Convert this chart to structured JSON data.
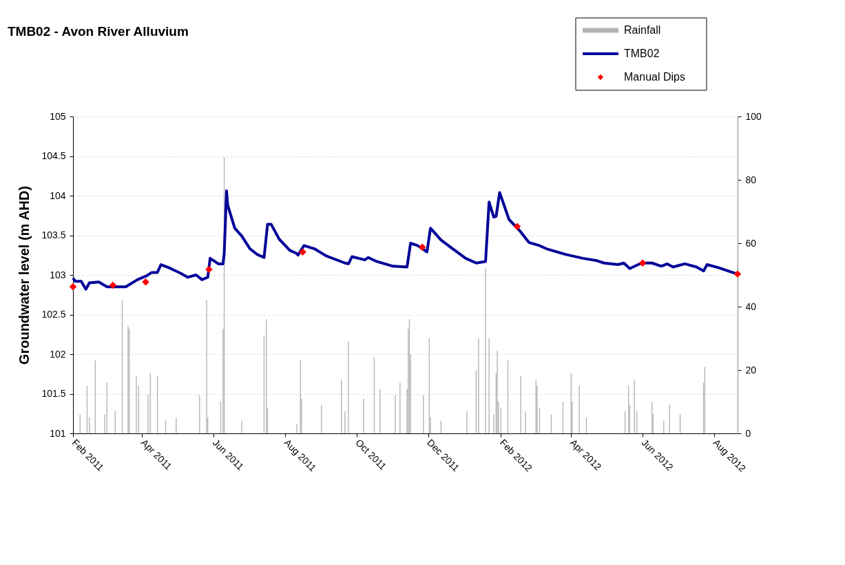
{
  "chart_data": {
    "type": "line",
    "title": "TMB02 - Avon River Alluvium",
    "ylabel": "Groundwater level (m AHD)",
    "xlim": [
      "2011-02-01",
      "2012-08-21"
    ],
    "xticks": [
      {
        "value": "2011-02-01",
        "label": "Feb 2011"
      },
      {
        "value": "2011-04-01",
        "label": "Apr 2011"
      },
      {
        "value": "2011-06-01",
        "label": "Jun 2011"
      },
      {
        "value": "2011-08-01",
        "label": "Aug 2011"
      },
      {
        "value": "2011-10-01",
        "label": "Oct 2011"
      },
      {
        "value": "2011-12-01",
        "label": "Dec 2011"
      },
      {
        "value": "2012-02-01",
        "label": "Feb 2012"
      },
      {
        "value": "2012-04-01",
        "label": "Apr 2012"
      },
      {
        "value": "2012-06-01",
        "label": "Jun 2012"
      },
      {
        "value": "2012-08-01",
        "label": "Aug 2012"
      }
    ],
    "ylim": [
      101,
      105
    ],
    "yticks": [
      101,
      101.5,
      102,
      102.5,
      103,
      103.5,
      104,
      104.5,
      105
    ],
    "y2lim": [
      0,
      100
    ],
    "y2ticks": [
      0,
      20,
      40,
      60,
      80,
      100
    ],
    "grid": "y",
    "legend": "top right",
    "series": [
      {
        "name": "Rainfall",
        "type": "bar",
        "axis": "y2",
        "color": "#b4b4b4",
        "x": [
          "2011-02-07",
          "2011-02-13",
          "2011-02-15",
          "2011-02-20",
          "2011-02-28",
          "2011-03-02",
          "2011-03-09",
          "2011-03-15",
          "2011-03-20",
          "2011-03-21",
          "2011-03-27",
          "2011-03-29",
          "2011-04-06",
          "2011-04-08",
          "2011-04-14",
          "2011-04-21",
          "2011-04-30",
          "2011-05-20",
          "2011-05-26",
          "2011-05-27",
          "2011-06-07",
          "2011-06-09",
          "2011-06-10",
          "2011-06-25",
          "2011-07-14",
          "2011-07-16",
          "2011-07-17",
          "2011-08-11",
          "2011-08-14",
          "2011-08-15",
          "2011-09-01",
          "2011-09-18",
          "2011-09-21",
          "2011-09-24",
          "2011-10-07",
          "2011-10-16",
          "2011-10-21",
          "2011-11-03",
          "2011-11-07",
          "2011-11-13",
          "2011-11-14",
          "2011-11-15",
          "2011-11-16",
          "2011-11-27",
          "2011-12-02",
          "2011-12-03",
          "2011-12-12",
          "2012-01-03",
          "2012-01-11",
          "2012-01-13",
          "2012-01-19",
          "2012-01-22",
          "2012-01-26",
          "2012-01-28",
          "2012-01-29",
          "2012-01-30",
          "2012-02-01",
          "2012-02-07",
          "2012-02-18",
          "2012-02-22",
          "2012-03-02",
          "2012-03-03",
          "2012-03-05",
          "2012-03-15",
          "2012-03-25",
          "2012-04-01",
          "2012-04-02",
          "2012-04-08",
          "2012-04-14",
          "2012-05-17",
          "2012-05-20",
          "2012-05-21",
          "2012-05-25",
          "2012-05-27",
          "2012-06-09",
          "2012-06-10",
          "2012-06-19",
          "2012-06-24",
          "2012-07-03",
          "2012-07-23",
          "2012-07-24"
        ],
        "values": [
          6,
          15,
          5,
          23,
          6,
          16,
          7,
          42,
          34,
          33,
          18,
          15,
          12,
          19,
          18,
          4,
          5,
          12,
          42,
          5,
          10,
          33,
          87,
          4,
          31,
          36,
          8,
          3,
          23,
          11,
          9,
          17,
          7,
          29,
          11,
          24,
          14,
          12,
          16,
          14,
          33,
          36,
          25,
          12,
          30,
          5,
          4,
          7,
          20,
          30,
          52,
          30,
          6,
          19,
          26,
          10,
          8,
          23,
          18,
          7,
          17,
          15,
          8,
          6,
          10,
          19,
          10,
          15,
          5,
          7,
          15,
          9,
          17,
          7,
          10,
          6,
          4,
          9,
          6,
          16,
          21
        ]
      },
      {
        "name": "TMB02",
        "color": "#000099",
        "x": [
          "2011-02-01",
          "2011-02-03",
          "2011-02-08",
          "2011-02-12",
          "2011-02-15",
          "2011-02-23",
          "2011-03-02",
          "2011-03-18",
          "2011-03-28",
          "2011-04-05",
          "2011-04-09",
          "2011-04-14",
          "2011-04-17",
          "2011-04-24",
          "2011-05-04",
          "2011-05-10",
          "2011-05-17",
          "2011-05-22",
          "2011-05-27",
          "2011-05-29",
          "2011-06-05",
          "2011-06-09",
          "2011-06-10",
          "2011-06-12",
          "2011-06-13",
          "2011-06-19",
          "2011-06-25",
          "2011-07-02",
          "2011-07-08",
          "2011-07-14",
          "2011-07-17",
          "2011-07-20",
          "2011-07-27",
          "2011-08-05",
          "2011-08-11",
          "2011-08-12",
          "2011-08-17",
          "2011-08-26",
          "2011-09-05",
          "2011-09-21",
          "2011-09-24",
          "2011-09-27",
          "2011-10-08",
          "2011-10-11",
          "2011-10-18",
          "2011-11-01",
          "2011-11-13",
          "2011-11-16",
          "2011-11-22",
          "2011-11-30",
          "2011-12-03",
          "2011-12-12",
          "2011-12-22",
          "2012-01-02",
          "2012-01-11",
          "2012-01-19",
          "2012-01-22",
          "2012-01-26",
          "2012-01-28",
          "2012-01-31",
          "2012-02-08",
          "2012-02-17",
          "2012-02-25",
          "2012-03-05",
          "2012-03-11",
          "2012-03-27",
          "2012-04-11",
          "2012-04-23",
          "2012-04-29",
          "2012-05-11",
          "2012-05-16",
          "2012-05-21",
          "2012-05-31",
          "2012-06-09",
          "2012-06-17",
          "2012-06-22",
          "2012-06-27",
          "2012-07-07",
          "2012-07-17",
          "2012-07-23",
          "2012-07-26",
          "2012-08-05",
          "2012-08-21"
        ],
        "values": [
          102.96,
          102.92,
          102.92,
          102.82,
          102.9,
          102.91,
          102.85,
          102.85,
          102.94,
          102.99,
          103.03,
          103.03,
          103.13,
          103.09,
          103.02,
          102.97,
          103.0,
          102.94,
          102.97,
          103.21,
          103.14,
          103.14,
          103.27,
          104.06,
          103.88,
          103.59,
          103.49,
          103.33,
          103.26,
          103.22,
          103.64,
          103.64,
          103.45,
          103.31,
          103.27,
          103.25,
          103.37,
          103.33,
          103.24,
          103.15,
          103.14,
          103.23,
          103.19,
          103.22,
          103.17,
          103.11,
          103.1,
          103.4,
          103.37,
          103.29,
          103.59,
          103.44,
          103.33,
          103.21,
          103.15,
          103.17,
          103.92,
          103.73,
          103.74,
          104.04,
          103.7,
          103.56,
          103.41,
          103.37,
          103.33,
          103.26,
          103.21,
          103.18,
          103.15,
          103.13,
          103.15,
          103.08,
          103.15,
          103.15,
          103.11,
          103.14,
          103.1,
          103.14,
          103.1,
          103.05,
          103.13,
          103.09,
          103.01
        ]
      },
      {
        "name": "Manual Dips",
        "type": "scatter",
        "marker": "diamond",
        "color": "#ff0000",
        "x": [
          "2011-02-01",
          "2011-03-07",
          "2011-04-04",
          "2011-05-28",
          "2011-08-16",
          "2011-11-26",
          "2012-02-15",
          "2012-06-01",
          "2012-08-21"
        ],
        "values": [
          102.85,
          102.87,
          102.91,
          103.07,
          103.29,
          103.35,
          103.61,
          103.15,
          103.01
        ]
      }
    ]
  }
}
